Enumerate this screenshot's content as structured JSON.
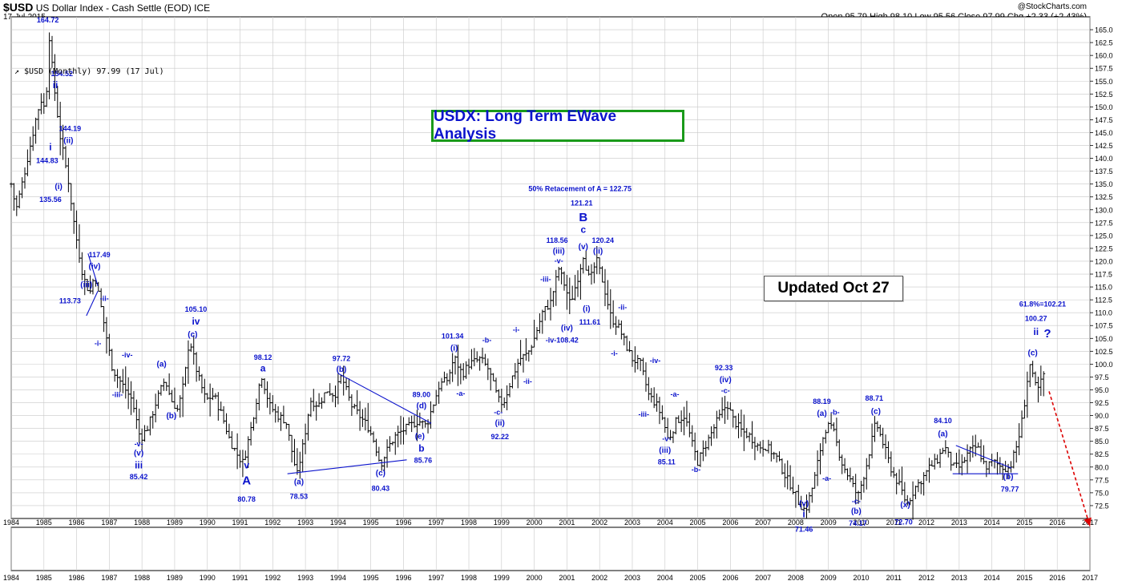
{
  "header": {
    "symbol": "$USD",
    "description": "US Dollar Index - Cash Settle (EOD)",
    "exchange": "ICE",
    "date": "17-Jul-2015",
    "credit": "@StockCharts.com",
    "ohlc": "Open 95.79  High 98.10  Low 95.56  Close 97.99  Chg +2.33 (+2.43%)",
    "legend": "↗ $USD (Monthly) 97.99 (17 Jul)"
  },
  "title_box": "USDX: Long Term EWave Analysis",
  "update_box": "Updated Oct 27",
  "colors": {
    "wave_label": "#0b13cc",
    "title_border": "#1a9a1a",
    "price_bars": "#000000",
    "grid": "#c8c8c8",
    "projection": "#dd0000"
  },
  "chart_data": {
    "type": "ohlc",
    "series_name": "$USD (Monthly)",
    "x_axis": {
      "type": "year",
      "range": [
        1984,
        2017
      ],
      "ticks": [
        "1984",
        "1985",
        "1986",
        "1987",
        "1988",
        "1989",
        "1990",
        "1991",
        "1992",
        "1993",
        "1994",
        "1995",
        "1996",
        "1997",
        "1998",
        "1999",
        "2000",
        "2001",
        "2002",
        "2003",
        "2004",
        "2005",
        "2006",
        "2007",
        "2008",
        "2009",
        "2010",
        "2011",
        "2012",
        "2013",
        "2014",
        "2015",
        "2016",
        "2017"
      ]
    },
    "y_axis": {
      "range": [
        70,
        167.5
      ],
      "tick_step": 2.5,
      "ticks": [
        "72.5",
        "75.0",
        "77.5",
        "80.0",
        "82.5",
        "85.0",
        "87.5",
        "90.0",
        "92.5",
        "95.0",
        "97.5",
        "100.0",
        "102.5",
        "105.0",
        "107.5",
        "110.0",
        "112.5",
        "115.0",
        "117.5",
        "120.0",
        "122.5",
        "125.0",
        "127.5",
        "130.0",
        "132.5",
        "135.0",
        "137.5",
        "140.0",
        "142.5",
        "145.0",
        "147.5",
        "150.0",
        "152.5",
        "155.0",
        "157.5",
        "160.0",
        "162.5",
        "165.0"
      ],
      "grid": true
    },
    "anchors": [
      [
        1984.0,
        135
      ],
      [
        1984.15,
        130
      ],
      [
        1984.4,
        137
      ],
      [
        1984.6,
        143
      ],
      [
        1984.8,
        149
      ],
      [
        1984.95,
        152
      ],
      [
        1985.05,
        148
      ],
      [
        1985.15,
        164.72
      ],
      [
        1985.3,
        154.52
      ],
      [
        1985.5,
        144.19
      ],
      [
        1985.75,
        135.56
      ],
      [
        1985.95,
        126
      ],
      [
        1986.2,
        117
      ],
      [
        1986.4,
        113.73
      ],
      [
        1986.55,
        117.49
      ],
      [
        1986.75,
        111
      ],
      [
        1986.95,
        104
      ],
      [
        1987.1,
        99
      ],
      [
        1987.4,
        96
      ],
      [
        1987.7,
        93
      ],
      [
        1987.95,
        85.42
      ],
      [
        1988.2,
        88
      ],
      [
        1988.45,
        93
      ],
      [
        1988.7,
        97
      ],
      [
        1988.9,
        93
      ],
      [
        1989.1,
        91
      ],
      [
        1989.3,
        97
      ],
      [
        1989.45,
        105.1
      ],
      [
        1989.7,
        98
      ],
      [
        1989.95,
        93
      ],
      [
        1990.2,
        94
      ],
      [
        1990.45,
        90
      ],
      [
        1990.7,
        85
      ],
      [
        1990.95,
        82
      ],
      [
        1991.1,
        80.78
      ],
      [
        1991.35,
        88
      ],
      [
        1991.65,
        98.12
      ],
      [
        1991.9,
        92
      ],
      [
        1992.15,
        90
      ],
      [
        1992.4,
        89
      ],
      [
        1992.65,
        81
      ],
      [
        1992.75,
        78.53
      ],
      [
        1992.95,
        85
      ],
      [
        1993.15,
        93
      ],
      [
        1993.4,
        92
      ],
      [
        1993.65,
        95
      ],
      [
        1993.9,
        94
      ],
      [
        1994.1,
        97.72
      ],
      [
        1994.4,
        92
      ],
      [
        1994.65,
        90
      ],
      [
        1994.9,
        88
      ],
      [
        1995.1,
        85
      ],
      [
        1995.3,
        80.43
      ],
      [
        1995.55,
        84
      ],
      [
        1995.75,
        86
      ],
      [
        1995.95,
        87
      ],
      [
        1996.2,
        88
      ],
      [
        1996.45,
        89
      ],
      [
        1996.7,
        88
      ],
      [
        1996.9,
        92
      ],
      [
        1997.1,
        96
      ],
      [
        1997.35,
        97
      ],
      [
        1997.55,
        101.34
      ],
      [
        1997.8,
        98
      ],
      [
        1998.0,
        100
      ],
      [
        1998.35,
        101
      ],
      [
        1998.6,
        99
      ],
      [
        1998.9,
        93
      ],
      [
        1999.05,
        92.22
      ],
      [
        1999.3,
        97
      ],
      [
        1999.55,
        101
      ],
      [
        1999.8,
        102
      ],
      [
        2000.0,
        105
      ],
      [
        2000.25,
        110
      ],
      [
        2000.5,
        112
      ],
      [
        2000.75,
        118.56
      ],
      [
        2000.95,
        115
      ],
      [
        2001.1,
        111.61
      ],
      [
        2001.3,
        116
      ],
      [
        2001.5,
        121.21
      ],
      [
        2001.7,
        116
      ],
      [
        2001.9,
        120.24
      ],
      [
        2002.1,
        116
      ],
      [
        2002.35,
        109
      ],
      [
        2002.6,
        107
      ],
      [
        2002.85,
        103
      ],
      [
        2003.0,
        101
      ],
      [
        2003.25,
        100
      ],
      [
        2003.5,
        94
      ],
      [
        2003.75,
        92
      ],
      [
        2003.95,
        89
      ],
      [
        2004.1,
        85.11
      ],
      [
        2004.35,
        89
      ],
      [
        2004.6,
        90
      ],
      [
        2004.85,
        84
      ],
      [
        2005.0,
        81
      ],
      [
        2005.3,
        85
      ],
      [
        2005.6,
        89
      ],
      [
        2005.9,
        92.33
      ],
      [
        2006.1,
        89
      ],
      [
        2006.35,
        87
      ],
      [
        2006.6,
        86
      ],
      [
        2006.85,
        84
      ],
      [
        2007.1,
        84
      ],
      [
        2007.4,
        82
      ],
      [
        2007.7,
        78
      ],
      [
        2007.9,
        76
      ],
      [
        2008.1,
        73
      ],
      [
        2008.3,
        71.46
      ],
      [
        2008.55,
        77
      ],
      [
        2008.8,
        85
      ],
      [
        2008.95,
        88.19
      ],
      [
        2009.15,
        87
      ],
      [
        2009.4,
        81
      ],
      [
        2009.7,
        77
      ],
      [
        2009.9,
        74.17
      ],
      [
        2010.15,
        80
      ],
      [
        2010.45,
        88.71
      ],
      [
        2010.7,
        84
      ],
      [
        2010.95,
        79
      ],
      [
        2011.2,
        76
      ],
      [
        2011.4,
        72.7
      ],
      [
        2011.65,
        76
      ],
      [
        2011.9,
        78
      ],
      [
        2012.1,
        80
      ],
      [
        2012.3,
        81
      ],
      [
        2012.55,
        84.1
      ],
      [
        2012.8,
        80
      ],
      [
        2013.05,
        80
      ],
      [
        2013.3,
        83
      ],
      [
        2013.55,
        84
      ],
      [
        2013.8,
        80
      ],
      [
        2014.05,
        81
      ],
      [
        2014.3,
        80
      ],
      [
        2014.55,
        79.77
      ],
      [
        2014.8,
        85
      ],
      [
        2014.95,
        90
      ],
      [
        2015.15,
        100.27
      ],
      [
        2015.3,
        96
      ],
      [
        2015.45,
        95
      ],
      [
        2015.55,
        97.99
      ]
    ],
    "wave_labels": [
      {
        "text": "164.72",
        "x": 1985.12,
        "y": 166.4,
        "bold": true
      },
      {
        "text": "154.52",
        "x": 1985.55,
        "y": 156.0
      },
      {
        "text": "ii",
        "x": 1985.35,
        "y": 153.6,
        "size": 12
      },
      {
        "text": "144.19",
        "x": 1985.8,
        "y": 145.3
      },
      {
        "text": "(ii)",
        "x": 1985.75,
        "y": 143.0,
        "size": 10
      },
      {
        "text": "i",
        "x": 1985.2,
        "y": 141.6,
        "size": 12
      },
      {
        "text": "144.83",
        "x": 1985.1,
        "y": 139.1
      },
      {
        "text": "(i)",
        "x": 1985.45,
        "y": 134.0,
        "size": 10
      },
      {
        "text": "135.56",
        "x": 1985.2,
        "y": 131.5
      },
      {
        "text": "117.49",
        "x": 1986.7,
        "y": 120.8
      },
      {
        "text": "(iv)",
        "x": 1986.55,
        "y": 118.5,
        "size": 10
      },
      {
        "text": "(iii)",
        "x": 1986.3,
        "y": 114.9,
        "size": 10
      },
      {
        "text": "113.73",
        "x": 1985.8,
        "y": 111.8
      },
      {
        "text": "-ii-",
        "x": 1986.85,
        "y": 112.3,
        "size": 9
      },
      {
        "text": "-i-",
        "x": 1986.65,
        "y": 103.6,
        "size": 9
      },
      {
        "text": "-iv-",
        "x": 1987.55,
        "y": 101.3,
        "size": 9
      },
      {
        "text": "-iii-",
        "x": 1987.25,
        "y": 93.6,
        "size": 9
      },
      {
        "text": "(a)",
        "x": 1988.6,
        "y": 99.5,
        "size": 10
      },
      {
        "text": "(b)",
        "x": 1988.9,
        "y": 89.5,
        "size": 10
      },
      {
        "text": "105.10",
        "x": 1989.65,
        "y": 110.2
      },
      {
        "text": "iv",
        "x": 1989.65,
        "y": 107.7,
        "size": 12
      },
      {
        "text": "(c)",
        "x": 1989.55,
        "y": 105.3,
        "size": 10
      },
      {
        "text": "-v-",
        "x": 1987.9,
        "y": 84.0,
        "size": 9
      },
      {
        "text": "(v)",
        "x": 1987.9,
        "y": 82.2,
        "size": 10
      },
      {
        "text": "iii",
        "x": 1987.9,
        "y": 79.7,
        "size": 12
      },
      {
        "text": "85.42",
        "x": 1987.9,
        "y": 77.6
      },
      {
        "text": "98.12",
        "x": 1991.7,
        "y": 100.8
      },
      {
        "text": "a",
        "x": 1991.7,
        "y": 98.6,
        "size": 12
      },
      {
        "text": "v",
        "x": 1991.2,
        "y": 79.7,
        "size": 12
      },
      {
        "text": "A",
        "x": 1991.2,
        "y": 76.6,
        "size": 15
      },
      {
        "text": "80.78",
        "x": 1991.2,
        "y": 73.3
      },
      {
        "text": "(a)",
        "x": 1992.8,
        "y": 76.6,
        "size": 10
      },
      {
        "text": "78.53",
        "x": 1992.8,
        "y": 73.8
      },
      {
        "text": "97.72",
        "x": 1994.1,
        "y": 100.6
      },
      {
        "text": "(b)",
        "x": 1994.1,
        "y": 98.5,
        "size": 10
      },
      {
        "text": "89.00",
        "x": 1996.55,
        "y": 93.6
      },
      {
        "text": "(d)",
        "x": 1996.55,
        "y": 91.4,
        "size": 10
      },
      {
        "text": "(e)",
        "x": 1996.5,
        "y": 85.5,
        "size": 10
      },
      {
        "text": "b",
        "x": 1996.55,
        "y": 83.0,
        "size": 12
      },
      {
        "text": "85.76",
        "x": 1996.6,
        "y": 80.8
      },
      {
        "text": "(c)",
        "x": 1995.3,
        "y": 78.3,
        "size": 10
      },
      {
        "text": "80.43",
        "x": 1995.3,
        "y": 75.4
      },
      {
        "text": "101.34",
        "x": 1997.5,
        "y": 105.0
      },
      {
        "text": "(i)",
        "x": 1997.55,
        "y": 102.6,
        "size": 10
      },
      {
        "text": "-a-",
        "x": 1997.75,
        "y": 93.8,
        "size": 9
      },
      {
        "text": "-b-",
        "x": 1998.55,
        "y": 104.2,
        "size": 9
      },
      {
        "text": "-c-",
        "x": 1998.9,
        "y": 90.2,
        "size": 9
      },
      {
        "text": "(ii)",
        "x": 1998.95,
        "y": 88.1,
        "size": 10
      },
      {
        "text": "92.22",
        "x": 1998.95,
        "y": 85.4
      },
      {
        "text": "-i-",
        "x": 1999.45,
        "y": 106.2,
        "size": 9
      },
      {
        "text": "-ii-",
        "x": 1999.8,
        "y": 96.2,
        "size": 9
      },
      {
        "text": "50% Retacement of A = 122.75",
        "x": 2001.4,
        "y": 133.6
      },
      {
        "text": "121.21",
        "x": 2001.45,
        "y": 130.8
      },
      {
        "text": "B",
        "x": 2001.5,
        "y": 127.8,
        "size": 15
      },
      {
        "text": "c",
        "x": 2001.5,
        "y": 125.5,
        "size": 12
      },
      {
        "text": "118.56",
        "x": 2000.7,
        "y": 123.6
      },
      {
        "text": "(iii)",
        "x": 2000.75,
        "y": 121.5,
        "size": 10
      },
      {
        "text": "-v-",
        "x": 2000.75,
        "y": 119.6,
        "size": 9
      },
      {
        "text": "(v)",
        "x": 2001.5,
        "y": 122.3,
        "size": 10
      },
      {
        "text": "120.24",
        "x": 2002.1,
        "y": 123.6
      },
      {
        "text": "(ii)",
        "x": 2001.95,
        "y": 121.5,
        "size": 10
      },
      {
        "text": "-iii-",
        "x": 2000.35,
        "y": 116.0,
        "size": 9
      },
      {
        "text": "(i)",
        "x": 2001.6,
        "y": 110.3,
        "size": 10
      },
      {
        "text": "111.61",
        "x": 2001.7,
        "y": 107.7
      },
      {
        "text": "(iv)",
        "x": 2001.0,
        "y": 106.5,
        "size": 10
      },
      {
        "text": "-iv-108.42",
        "x": 2000.85,
        "y": 104.2
      },
      {
        "text": "-ii-",
        "x": 2002.7,
        "y": 110.6,
        "size": 9
      },
      {
        "text": "-i-",
        "x": 2002.45,
        "y": 101.6,
        "size": 9
      },
      {
        "text": "-iv-",
        "x": 2003.7,
        "y": 100.2,
        "size": 9
      },
      {
        "text": "-iii-",
        "x": 2003.35,
        "y": 89.8,
        "size": 9
      },
      {
        "text": "-a-",
        "x": 2004.3,
        "y": 93.7,
        "size": 9
      },
      {
        "text": "-v-",
        "x": 2004.05,
        "y": 85.0,
        "size": 9
      },
      {
        "text": "(iii)",
        "x": 2004.0,
        "y": 82.8,
        "size": 10
      },
      {
        "text": "85.11",
        "x": 2004.05,
        "y": 80.5
      },
      {
        "text": "-b-",
        "x": 2004.95,
        "y": 79.0,
        "size": 9
      },
      {
        "text": "92.33",
        "x": 2005.8,
        "y": 98.8
      },
      {
        "text": "(iv)",
        "x": 2005.85,
        "y": 96.5,
        "size": 10
      },
      {
        "text": "-c-",
        "x": 2005.85,
        "y": 94.4,
        "size": 9
      },
      {
        "text": "88.19",
        "x": 2008.8,
        "y": 92.3
      },
      {
        "text": "(a)",
        "x": 2008.8,
        "y": 89.9,
        "size": 10
      },
      {
        "text": "-b-",
        "x": 2009.2,
        "y": 90.2,
        "size": 9
      },
      {
        "text": "-a-",
        "x": 2008.95,
        "y": 77.3,
        "size": 9
      },
      {
        "text": "(v)",
        "x": 2008.25,
        "y": 72.4,
        "size": 10
      },
      {
        "text": "i",
        "x": 2008.25,
        "y": 70.2,
        "size": 12
      },
      {
        "text": "71.46",
        "x": 2008.25,
        "y": 67.4
      },
      {
        "text": "88.71",
        "x": 2010.4,
        "y": 92.9
      },
      {
        "text": "(c)",
        "x": 2010.45,
        "y": 90.3,
        "size": 10
      },
      {
        "text": "-c-",
        "x": 2009.85,
        "y": 72.9,
        "size": 9
      },
      {
        "text": "(b)",
        "x": 2009.85,
        "y": 70.9,
        "size": 10
      },
      {
        "text": "74.17",
        "x": 2009.9,
        "y": 68.6
      },
      {
        "text": "(x)",
        "x": 2011.35,
        "y": 72.2,
        "size": 10
      },
      {
        "text": "72.70",
        "x": 2011.3,
        "y": 68.8
      },
      {
        "text": "84.10",
        "x": 2012.5,
        "y": 88.5
      },
      {
        "text": "(a)",
        "x": 2012.5,
        "y": 86.0,
        "size": 10
      },
      {
        "text": "(b)",
        "x": 2014.5,
        "y": 77.6,
        "size": 10
      },
      {
        "text": "79.77",
        "x": 2014.55,
        "y": 75.2
      },
      {
        "text": "61.8%=102.21",
        "x": 2015.55,
        "y": 111.2
      },
      {
        "text": "100.27",
        "x": 2015.35,
        "y": 108.4
      },
      {
        "text": "ii",
        "x": 2015.35,
        "y": 105.7,
        "size": 12
      },
      {
        "text": "?",
        "x": 2015.7,
        "y": 105.2,
        "size": 15
      },
      {
        "text": "(c)",
        "x": 2015.25,
        "y": 101.7,
        "size": 10
      }
    ],
    "trend_lines": [
      {
        "from": [
          1986.35,
          121.5
        ],
        "to": [
          1986.65,
          115.2
        ]
      },
      {
        "from": [
          1986.3,
          109.4
        ],
        "to": [
          1986.65,
          114.2
        ]
      },
      {
        "from": [
          1994.0,
          98.2
        ],
        "to": [
          1996.85,
          88.5
        ]
      },
      {
        "from": [
          1992.45,
          78.7
        ],
        "to": [
          1996.1,
          81.4
        ]
      },
      {
        "from": [
          2012.9,
          84.2
        ],
        "to": [
          2014.6,
          79.8
        ]
      },
      {
        "from": [
          2012.8,
          78.7
        ],
        "to": [
          2014.8,
          78.7
        ]
      }
    ],
    "projection": {
      "from": [
        2015.75,
        94.7
      ],
      "to": [
        2017.0,
        68.5
      ]
    }
  }
}
